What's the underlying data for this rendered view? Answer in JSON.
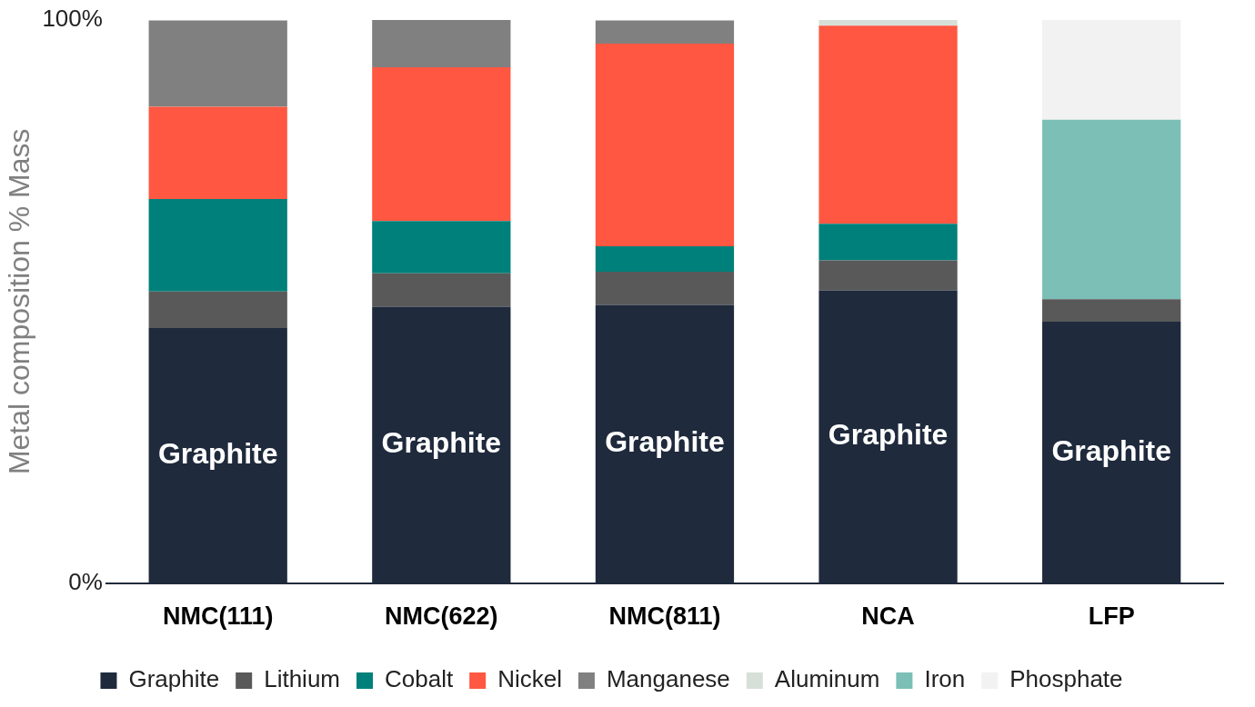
{
  "chart_data": {
    "type": "bar",
    "stacked": true,
    "ylabel": "Metal composition % Mass",
    "categories": [
      "NMC(111)",
      "NMC(622)",
      "NMC(811)",
      "NCA",
      "LFP"
    ],
    "series": [
      {
        "name": "Graphite",
        "color": "#1f2a3c",
        "values": [
          45.3,
          49.1,
          49.4,
          52.0,
          46.4
        ]
      },
      {
        "name": "Lithium",
        "color": "#595959",
        "values": [
          6.5,
          5.9,
          5.9,
          5.3,
          4.0
        ]
      },
      {
        "name": "Cobalt",
        "color": "#00807a",
        "values": [
          16.4,
          9.3,
          4.5,
          6.5,
          null
        ]
      },
      {
        "name": "Nickel",
        "color": "#ff5741",
        "values": [
          16.4,
          27.3,
          36.0,
          35.2,
          null
        ]
      },
      {
        "name": "Manganese",
        "color": "#808080",
        "values": [
          15.3,
          8.5,
          4.1,
          null,
          null
        ]
      },
      {
        "name": "Aluminum",
        "color": "#d6e0d9",
        "values": [
          null,
          null,
          null,
          1.0,
          null
        ]
      },
      {
        "name": "Iron",
        "color": "#7bbfb7",
        "values": [
          null,
          null,
          null,
          null,
          31.9
        ]
      },
      {
        "name": "Phosphate",
        "color": "#f2f2f2",
        "values": [
          null,
          null,
          null,
          null,
          17.7
        ]
      }
    ],
    "ylim": [
      0,
      100
    ],
    "yticks": [
      {
        "value": 0,
        "label": "0%"
      },
      {
        "value": 100,
        "label": "100%"
      }
    ],
    "grid": false,
    "legend": "bottom",
    "annotations": [
      "Graphite",
      "Graphite",
      "Graphite",
      "Graphite",
      "Graphite"
    ]
  }
}
